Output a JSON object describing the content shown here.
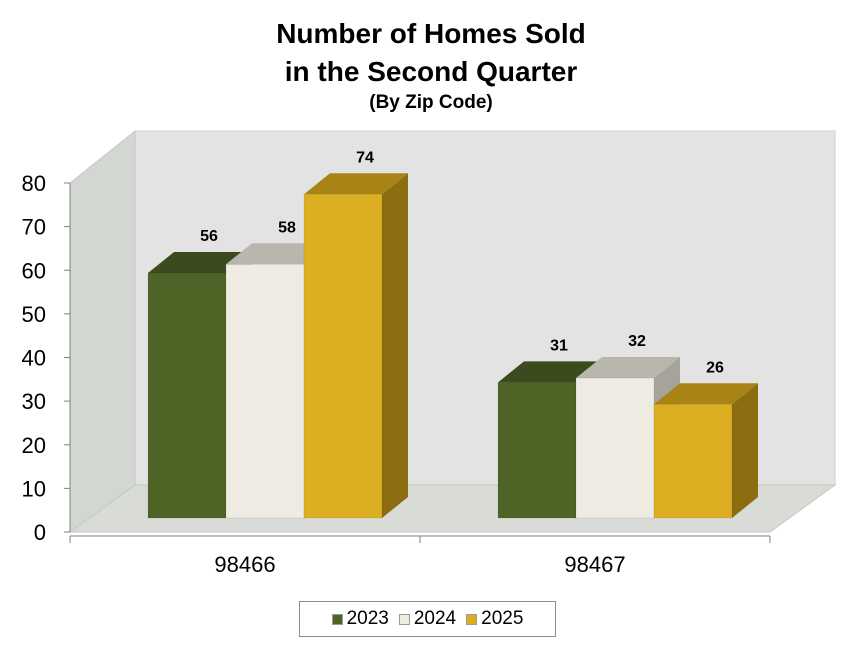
{
  "chart_data": {
    "type": "bar",
    "title_lines": [
      "Number of Homes Sold",
      "in the Second Quarter"
    ],
    "subtitle": "(By Zip Code)",
    "categories": [
      "98466",
      "98467"
    ],
    "series": [
      {
        "name": "2023",
        "values": [
          56,
          31
        ],
        "color": "#4e6427",
        "top_color": "#3b4b1d",
        "side_color": "#34441a"
      },
      {
        "name": "2024",
        "values": [
          58,
          32
        ],
        "color": "#eeebe2",
        "top_color": "#b9b6ad",
        "side_color": "#a6a39a"
      },
      {
        "name": "2025",
        "values": [
          74,
          26
        ],
        "color": "#dcae22",
        "top_color": "#a78413",
        "side_color": "#8c6d10"
      }
    ],
    "y_ticks": [
      "0",
      "10",
      "20",
      "30",
      "40",
      "50",
      "60",
      "70",
      "80"
    ],
    "ylim": [
      0,
      80
    ],
    "legend_position": "bottom",
    "style": "3d-clustered-column",
    "wall_color": "#e3e3e3",
    "side_wall_color": "#d2d7d1",
    "floor_color": "#d8dbd6"
  }
}
